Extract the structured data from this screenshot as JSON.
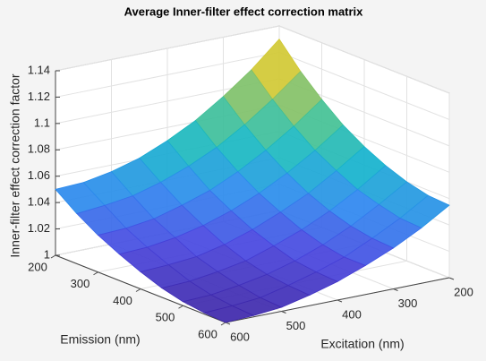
{
  "chart_data": {
    "type": "surface",
    "title": "Average Inner-filter effect correction matrix",
    "x_label": "Excitation (nm)",
    "y_label": "Emission (nm)",
    "z_label": "Inner-filter effect correction factor",
    "x": [
      200,
      250,
      300,
      350,
      400,
      450,
      500,
      550,
      600
    ],
    "y": [
      200,
      250,
      300,
      350,
      400,
      450,
      500,
      550,
      600
    ],
    "z": [
      [
        1.13,
        1.111,
        1.095,
        1.081,
        1.07,
        1.061,
        1.055,
        1.051,
        1.05
      ],
      [
        1.112,
        1.095,
        1.08,
        1.067,
        1.057,
        1.049,
        1.043,
        1.04,
        1.038
      ],
      [
        1.097,
        1.081,
        1.067,
        1.055,
        1.045,
        1.038,
        1.032,
        1.029,
        1.028
      ],
      [
        1.084,
        1.069,
        1.056,
        1.045,
        1.036,
        1.029,
        1.024,
        1.021,
        1.02
      ],
      [
        1.074,
        1.06,
        1.047,
        1.037,
        1.028,
        1.021,
        1.016,
        1.014,
        1.013
      ],
      [
        1.066,
        1.052,
        1.04,
        1.03,
        1.022,
        1.015,
        1.011,
        1.008,
        1.007
      ],
      [
        1.06,
        1.047,
        1.035,
        1.025,
        1.017,
        1.011,
        1.007,
        1.004,
        1.003
      ],
      [
        1.056,
        1.043,
        1.032,
        1.022,
        1.015,
        1.009,
        1.004,
        1.002,
        1.001
      ],
      [
        1.055,
        1.042,
        1.031,
        1.022,
        1.014,
        1.008,
        1.003,
        1.001,
        1.0
      ]
    ],
    "xlim": [
      200,
      600
    ],
    "ylim": [
      200,
      600
    ],
    "zlim": [
      1,
      1.14
    ],
    "xticks": [
      200,
      300,
      400,
      500,
      600
    ],
    "yticks": [
      200,
      300,
      400,
      500,
      600
    ],
    "zticks": [
      1,
      1.02,
      1.04,
      1.06,
      1.08,
      1.1,
      1.12,
      1.14
    ],
    "colormap": [
      "#3e26a8",
      "#4745e0",
      "#2e87f0",
      "#13b6c9",
      "#4ec38a",
      "#c9bf3a",
      "#f9fb15"
    ],
    "grid": true
  }
}
